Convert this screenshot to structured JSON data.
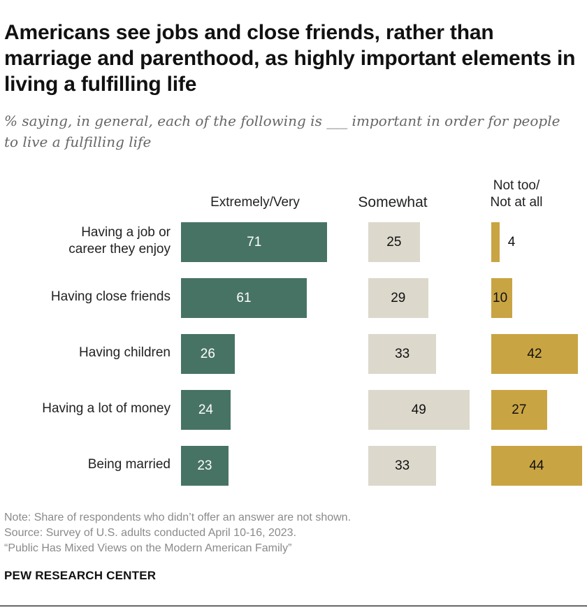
{
  "title": "Americans see jobs and close friends, rather than marriage and parenthood, as highly important elements in living a fulfilling life",
  "subtitle": "% saying, in general, each of the following is ___ important in order for people to live a fulfilling life",
  "chart_data": {
    "type": "bar",
    "orientation": "horizontal",
    "layout": "small-multiples",
    "categories": [
      "Having a job or career they enjoy",
      "Having close friends",
      "Having children",
      "Having a lot of money",
      "Being married"
    ],
    "category_lines": [
      [
        "Having a job or",
        "career they enjoy"
      ],
      [
        "Having close friends"
      ],
      [
        "Having children"
      ],
      [
        "Having a lot of money"
      ],
      [
        "Being married"
      ]
    ],
    "series": [
      {
        "name": "Extremely/Very",
        "name_lines": [
          "Extremely/Very"
        ],
        "color": "#477365",
        "values": [
          71,
          61,
          26,
          24,
          23
        ]
      },
      {
        "name": "Somewhat",
        "name_lines": [
          "Somewhat"
        ],
        "color": "#dcd8cc",
        "values": [
          25,
          29,
          33,
          49,
          33
        ]
      },
      {
        "name": "Not too/ Not at all",
        "name_lines": [
          "Not too/",
          "Not at all"
        ],
        "color": "#c9a443",
        "values": [
          4,
          10,
          42,
          27,
          44
        ]
      }
    ]
  },
  "notes": {
    "note": "Note: Share of respondents who didn’t offer an answer are not shown.",
    "source": "Source: Survey of U.S. adults conducted April 10-16, 2023.",
    "report": "“Public Has Mixed Views on the Modern American Family”"
  },
  "brand": "PEW RESEARCH CENTER"
}
